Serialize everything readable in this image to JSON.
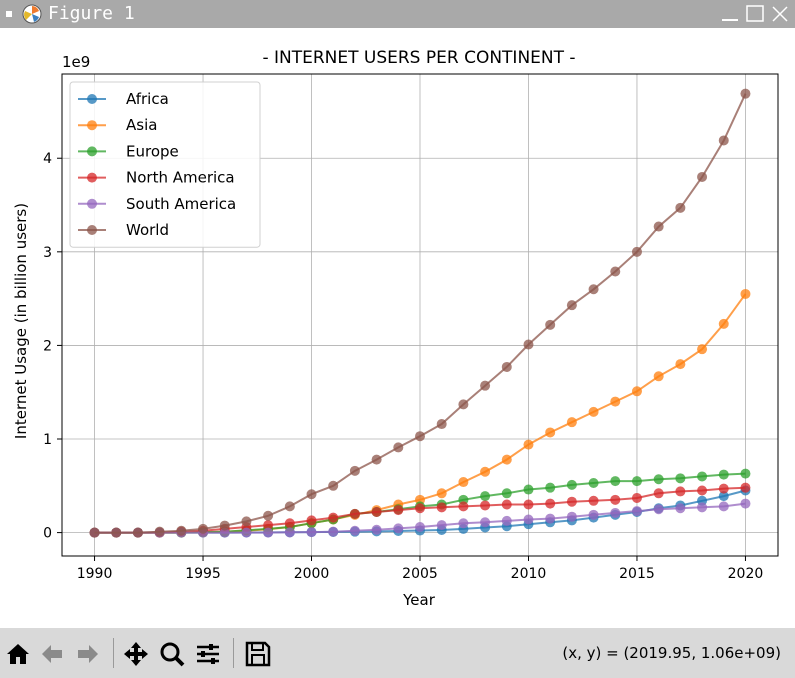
{
  "window": {
    "title": "Figure 1"
  },
  "toolbar": {
    "coords": "(x, y) = (2019.95, 1.06e+09)"
  },
  "colors": {
    "titlebar": "#a9a9a9",
    "toolbar": "#d9d9d9"
  },
  "icons": [
    "home-icon",
    "back-arrow-icon",
    "forward-arrow-icon",
    "pan-icon",
    "zoom-icon",
    "configure-subplots-icon",
    "save-icon"
  ],
  "chart_data": {
    "type": "line",
    "title": "- INTERNET USERS PER CONTINENT -",
    "xlabel": "Year",
    "ylabel": "Internet Usage (in billion users)",
    "y_offset_label": "1e9",
    "xlim": [
      1988.5,
      2021.5
    ],
    "ylim": [
      -0.25,
      4.9
    ],
    "x_ticks": [
      1990,
      1995,
      2000,
      2005,
      2010,
      2015,
      2020
    ],
    "y_ticks": [
      0,
      1,
      2,
      3,
      4
    ],
    "grid": true,
    "legend": "top-left",
    "x": [
      1990,
      1991,
      1992,
      1993,
      1994,
      1995,
      1996,
      1997,
      1998,
      1999,
      2000,
      2001,
      2002,
      2003,
      2004,
      2005,
      2006,
      2007,
      2008,
      2009,
      2010,
      2011,
      2012,
      2013,
      2014,
      2015,
      2016,
      2017,
      2018,
      2019,
      2020
    ],
    "series": [
      {
        "name": "Africa",
        "color": "#1f77b4",
        "values": [
          0,
          0,
          0,
          0,
          0,
          0,
          0,
          0.001,
          0.002,
          0.003,
          0.005,
          0.007,
          0.01,
          0.013,
          0.017,
          0.022,
          0.028,
          0.04,
          0.055,
          0.068,
          0.09,
          0.11,
          0.13,
          0.16,
          0.19,
          0.22,
          0.26,
          0.29,
          0.34,
          0.39,
          0.45
        ]
      },
      {
        "name": "Asia",
        "color": "#ff7f0e",
        "values": [
          0,
          0,
          0,
          0,
          0,
          0.004,
          0.01,
          0.02,
          0.035,
          0.06,
          0.1,
          0.14,
          0.19,
          0.24,
          0.3,
          0.35,
          0.42,
          0.54,
          0.65,
          0.78,
          0.94,
          1.07,
          1.18,
          1.29,
          1.4,
          1.51,
          1.67,
          1.8,
          1.96,
          2.23,
          2.55
        ]
      },
      {
        "name": "Europe",
        "color": "#2ca02c",
        "values": [
          0,
          0,
          0,
          0,
          0,
          0.005,
          0.01,
          0.025,
          0.04,
          0.06,
          0.1,
          0.14,
          0.2,
          0.22,
          0.25,
          0.28,
          0.3,
          0.35,
          0.39,
          0.42,
          0.46,
          0.48,
          0.51,
          0.53,
          0.55,
          0.55,
          0.57,
          0.58,
          0.6,
          0.62,
          0.63
        ]
      },
      {
        "name": "North America",
        "color": "#d62728",
        "values": [
          0,
          0,
          0,
          0,
          0.01,
          0.02,
          0.04,
          0.06,
          0.08,
          0.1,
          0.13,
          0.16,
          0.2,
          0.22,
          0.24,
          0.26,
          0.27,
          0.28,
          0.29,
          0.3,
          0.3,
          0.31,
          0.33,
          0.34,
          0.35,
          0.37,
          0.42,
          0.44,
          0.45,
          0.47,
          0.48
        ]
      },
      {
        "name": "South America",
        "color": "#9467bd",
        "values": [
          0,
          0,
          0,
          0,
          0,
          0,
          0,
          0,
          0,
          0.003,
          0.005,
          0.01,
          0.02,
          0.03,
          0.045,
          0.06,
          0.08,
          0.1,
          0.11,
          0.125,
          0.14,
          0.15,
          0.17,
          0.19,
          0.21,
          0.23,
          0.25,
          0.26,
          0.27,
          0.28,
          0.31
        ]
      },
      {
        "name": "World",
        "color": "#8c564b",
        "values": [
          0,
          0,
          0,
          0.01,
          0.02,
          0.04,
          0.075,
          0.12,
          0.18,
          0.28,
          0.41,
          0.5,
          0.66,
          0.78,
          0.91,
          1.03,
          1.16,
          1.37,
          1.57,
          1.77,
          2.01,
          2.22,
          2.43,
          2.6,
          2.79,
          3.0,
          3.27,
          3.47,
          3.8,
          4.19,
          4.69
        ]
      }
    ]
  }
}
